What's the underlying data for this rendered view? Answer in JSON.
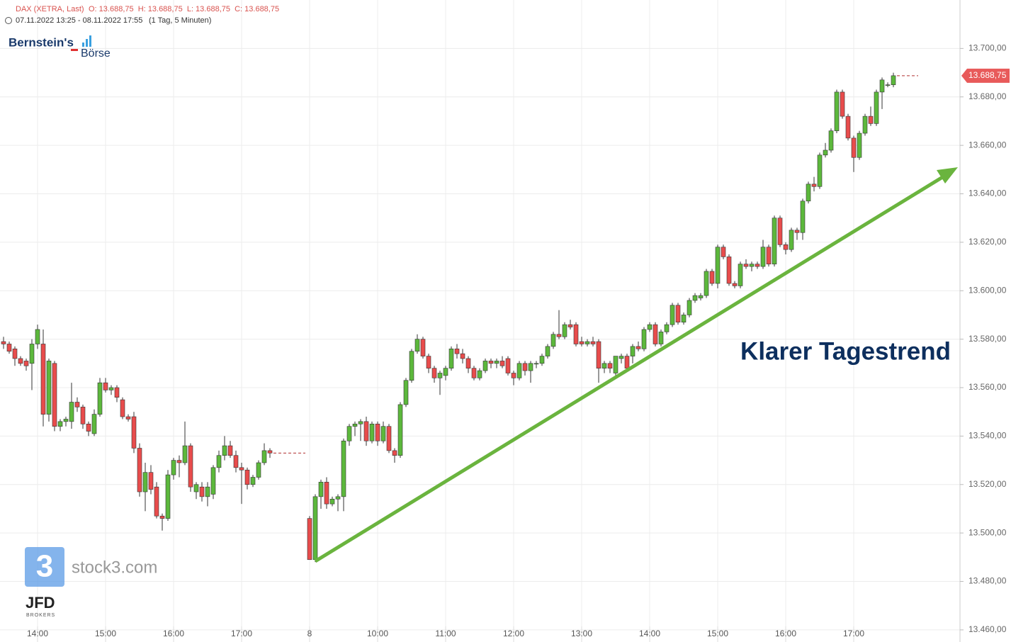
{
  "header": {
    "instrument": "DAX (XETRA, Last)",
    "ohlc": "O: 13.688,75  H: 13.688,75  L: 13.688,75  C: 13.688,75",
    "range": "07.11.2022 13:25 - 08.11.2022 17:55",
    "interval": "(1 Tag, 5 Minuten)"
  },
  "logos": {
    "bernstein": "Bernstein's",
    "boerse": "Börse",
    "stock3": "stock3.com",
    "jfd": "JFD",
    "brokers": "BROKERS"
  },
  "chart_data": {
    "type": "candlestick",
    "annotation": "Klarer Tagestrend",
    "up_color": "#5cb83c",
    "down_color": "#e84c4c",
    "grid": true,
    "ylim": [
      13455,
      13720
    ],
    "yticks": [
      {
        "value": 13460,
        "label": "13.460,00"
      },
      {
        "value": 13480,
        "label": "13.480,00"
      },
      {
        "value": 13500,
        "label": "13.500,00"
      },
      {
        "value": 13520,
        "label": "13.520,00"
      },
      {
        "value": 13540,
        "label": "13.540,00"
      },
      {
        "value": 13560,
        "label": "13.560,00"
      },
      {
        "value": 13580,
        "label": "13.580,00"
      },
      {
        "value": 13600,
        "label": "13.600,00"
      },
      {
        "value": 13620,
        "label": "13.620,00"
      },
      {
        "value": 13640,
        "label": "13.640,00"
      },
      {
        "value": 13660,
        "label": "13.660,00"
      },
      {
        "value": 13680,
        "label": "13.680,00"
      },
      {
        "value": 13700,
        "label": "13.700,00"
      }
    ],
    "last_price": {
      "value": 13688.75,
      "label": "13.688,75"
    },
    "categories": [
      null,
      null,
      null,
      null,
      null,
      null,
      "14:00",
      null,
      null,
      null,
      null,
      null,
      null,
      null,
      null,
      null,
      null,
      null,
      "15:00",
      null,
      null,
      null,
      null,
      null,
      null,
      null,
      null,
      null,
      null,
      null,
      "16:00",
      null,
      null,
      null,
      null,
      null,
      null,
      null,
      null,
      null,
      null,
      null,
      "17:00",
      null,
      null,
      null,
      null,
      null,
      null,
      null,
      null,
      null,
      null,
      null,
      "8",
      null,
      null,
      null,
      null,
      null,
      null,
      null,
      null,
      null,
      null,
      null,
      "10:00",
      null,
      null,
      null,
      null,
      null,
      null,
      null,
      null,
      null,
      null,
      null,
      "11:00",
      null,
      null,
      null,
      null,
      null,
      null,
      null,
      null,
      null,
      null,
      null,
      "12:00",
      null,
      null,
      null,
      null,
      null,
      null,
      null,
      null,
      null,
      null,
      null,
      "13:00",
      null,
      null,
      null,
      null,
      null,
      null,
      null,
      null,
      null,
      null,
      null,
      "14:00",
      null,
      null,
      null,
      null,
      null,
      null,
      null,
      null,
      null,
      null,
      null,
      "15:00",
      null,
      null,
      null,
      null,
      null,
      null,
      null,
      null,
      null,
      null,
      null,
      "16:00",
      null,
      null,
      null,
      null,
      null,
      null,
      null,
      null,
      null,
      null,
      null,
      "17:00",
      null,
      null,
      null,
      null,
      null,
      null,
      null
    ],
    "open": [
      13579,
      13578,
      13576,
      13572,
      13571,
      13570,
      13578,
      13578,
      13549,
      13570,
      13544,
      13546,
      13546,
      13554,
      13552,
      13545,
      13541,
      13549,
      13562,
      13559,
      13560,
      13555,
      13548,
      13548,
      13535,
      13517,
      13525,
      13519,
      13507,
      13506,
      13524,
      13530,
      13529,
      13536,
      13517,
      13519,
      13515,
      13516,
      13527,
      13532,
      13536,
      13532,
      13527,
      13526,
      13520,
      13523,
      13529,
      13534,
      null,
      null,
      null,
      null,
      null,
      null,
      13506,
      13489,
      13515,
      13521,
      13512,
      13514,
      13515,
      13538,
      13544,
      13545,
      13546,
      13538,
      13545,
      13538,
      13544,
      13534,
      13532,
      13553,
      13563,
      13575,
      13580,
      13573,
      13568,
      13564,
      13565,
      13568,
      13576,
      13574,
      13572,
      13568,
      13564,
      13567,
      13571,
      13570,
      13571,
      13572,
      13566,
      13564,
      13570,
      13567,
      13570,
      13570,
      13573,
      13577,
      13582,
      13581,
      13586,
      13586,
      13579,
      13578,
      13579,
      13579,
      13568,
      13570,
      13566,
      13572,
      13573,
      13573,
      13577,
      13576,
      13584,
      13586,
      13578,
      13583,
      13586,
      13594,
      13587,
      13590,
      13596,
      13597,
      13598,
      13608,
      13603,
      13618,
      13614,
      13603,
      13602,
      13611,
      13610,
      13611,
      13610,
      13618,
      13611,
      13630,
      13619,
      13617,
      13625,
      13624,
      13637,
      13644,
      13643,
      13656,
      13658,
      13666,
      13682,
      13672,
      13663,
      13655,
      13665,
      13672,
      13669,
      13682,
      13685,
      13685
    ],
    "high": [
      13581,
      13579,
      13577,
      13573,
      13572,
      13580,
      13586,
      13584,
      13572,
      13571,
      13547,
      13548,
      13562,
      13556,
      13553,
      13546,
      13551,
      13564,
      13564,
      13561,
      13561,
      13556,
      13549,
      13550,
      13537,
      13529,
      13528,
      13521,
      13508,
      13526,
      13531,
      13532,
      13546,
      13537,
      13521,
      13521,
      13521,
      13528,
      13534,
      13540,
      13538,
      13534,
      13529,
      13527,
      13524,
      13530,
      13537,
      13535,
      null,
      null,
      null,
      null,
      null,
      null,
      13507,
      13516,
      13522,
      13523,
      13515,
      13516,
      13539,
      13545,
      13546,
      13547,
      13548,
      13546,
      13546,
      13546,
      13545,
      13535,
      13554,
      13564,
      13576,
      13582,
      13581,
      13574,
      13569,
      13567,
      13569,
      13577,
      13578,
      13576,
      13573,
      13569,
      13568,
      13572,
      13572,
      13572,
      13573,
      13573,
      13567,
      13571,
      13571,
      13571,
      13571,
      13574,
      13578,
      13583,
      13592,
      13587,
      13588,
      13587,
      13581,
      13580,
      13581,
      13580,
      13571,
      13571,
      13573,
      13574,
      13574,
      13578,
      13579,
      13585,
      13587,
      13587,
      13584,
      13587,
      13595,
      13595,
      13591,
      13597,
      13599,
      13599,
      13609,
      13609,
      13619,
      13619,
      13615,
      13604,
      13612,
      13613,
      13612,
      13612,
      13621,
      13619,
      13631,
      13631,
      13620,
      13626,
      13626,
      13638,
      13645,
      13647,
      13657,
      13661,
      13667,
      13683,
      13683,
      13673,
      13664,
      13666,
      13673,
      13676,
      13683,
      13688,
      13686,
      13690
    ],
    "low": [
      13576,
      13574,
      13569,
      13569,
      13567,
      13559,
      13576,
      13544,
      13546,
      13542,
      13542,
      13544,
      13543,
      13550,
      13543,
      13540,
      13540,
      13548,
      13558,
      13557,
      13554,
      13547,
      13546,
      13533,
      13515,
      13509,
      13516,
      13506,
      13501,
      13505,
      13522,
      13523,
      13528,
      13517,
      13514,
      13513,
      13511,
      13514,
      13525,
      13530,
      13531,
      13525,
      13512,
      13518,
      13519,
      13522,
      13528,
      13531,
      null,
      null,
      null,
      null,
      null,
      null,
      13489,
      13488,
      13510,
      13510,
      13511,
      13509,
      13509,
      13536,
      13540,
      13538,
      13536,
      13537,
      13536,
      13537,
      13533,
      13529,
      13531,
      13552,
      13562,
      13574,
      13572,
      13566,
      13562,
      13557,
      13563,
      13567,
      13572,
      13570,
      13566,
      13563,
      13563,
      13566,
      13568,
      13568,
      13568,
      13565,
      13561,
      13563,
      13565,
      13562,
      13568,
      13569,
      13572,
      13576,
      13580,
      13580,
      13584,
      13577,
      13577,
      13577,
      13577,
      13562,
      13566,
      13566,
      13565,
      13570,
      13567,
      13570,
      13575,
      13575,
      13583,
      13577,
      13577,
      13582,
      13585,
      13586,
      13586,
      13589,
      13595,
      13596,
      13597,
      13602,
      13601,
      13613,
      13602,
      13601,
      13601,
      13609,
      13608,
      13609,
      13609,
      13610,
      13610,
      13618,
      13615,
      13616,
      13621,
      13621,
      13636,
      13641,
      13642,
      13655,
      13657,
      13665,
      13671,
      13662,
      13649,
      13654,
      13664,
      13668,
      13668,
      13675,
      13684,
      13684
    ],
    "close": [
      13578,
      13575,
      13572,
      13570,
      13569,
      13578,
      13584,
      13549,
      13571,
      13544,
      13546,
      13547,
      13554,
      13552,
      13545,
      13542,
      13549,
      13562,
      13559,
      13560,
      13556,
      13548,
      13547,
      13535,
      13517,
      13525,
      13518,
      13507,
      13506,
      13524,
      13530,
      13529,
      13536,
      13519,
      13520,
      13515,
      13519,
      13527,
      13532,
      13536,
      13532,
      13527,
      13526,
      13520,
      13523,
      13529,
      13534,
      13533,
      null,
      null,
      null,
      null,
      null,
      null,
      13489,
      13515,
      13521,
      13512,
      13514,
      13515,
      13538,
      13544,
      13545,
      13546,
      13538,
      13545,
      13538,
      13544,
      13534,
      13532,
      13553,
      13563,
      13575,
      13580,
      13573,
      13568,
      13564,
      13566,
      13568,
      13576,
      13574,
      13572,
      13568,
      13564,
      13567,
      13571,
      13570,
      13571,
      13569,
      13566,
      13564,
      13570,
      13567,
      13570,
      13570,
      13573,
      13577,
      13582,
      13581,
      13586,
      13585,
      13578,
      13578,
      13579,
      13578,
      13568,
      13570,
      13568,
      13573,
      13573,
      13568,
      13577,
      13576,
      13584,
      13586,
      13578,
      13583,
      13586,
      13594,
      13587,
      13590,
      13596,
      13598,
      13598,
      13608,
      13603,
      13618,
      13614,
      13603,
      13602,
      13611,
      13610,
      13611,
      13610,
      13618,
      13611,
      13630,
      13619,
      13617,
      13625,
      13624,
      13637,
      13644,
      13643,
      13656,
      13658,
      13666,
      13682,
      13672,
      13663,
      13655,
      13665,
      13672,
      13669,
      13682,
      13687,
      13685,
      13688.75
    ]
  }
}
